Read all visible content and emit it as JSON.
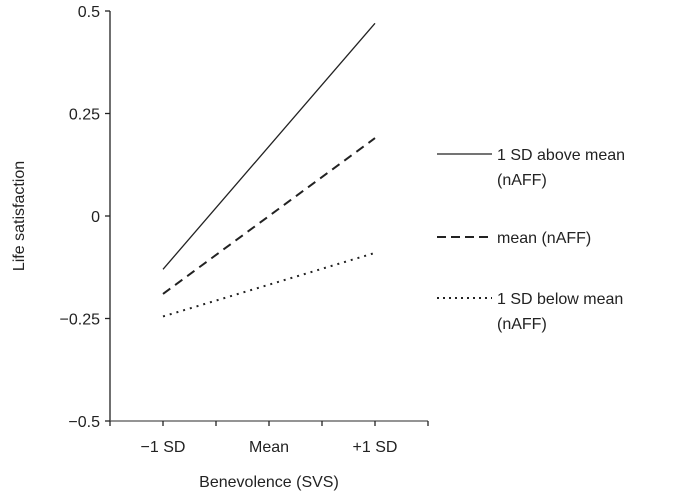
{
  "chart_data": {
    "type": "line",
    "title": "",
    "xlabel": "Benevolence (SVS)",
    "ylabel": "Life satisfaction",
    "categories": [
      "−1 SD",
      "Mean",
      "+1 SD"
    ],
    "x_positions": [
      1,
      3,
      5
    ],
    "xlim": [
      0,
      6
    ],
    "ylim": [
      -0.5,
      0.5
    ],
    "yticks": [
      0.5,
      0.25,
      0,
      -0.25,
      -0.5
    ],
    "ytick_labels": [
      "0.5",
      "0.25",
      "0",
      "−0.25",
      "−0.5"
    ],
    "grid": false,
    "legend_position": "right",
    "series": [
      {
        "name": "1 SD above mean (nAFF)",
        "label_lines": [
          "1 SD above mean",
          "(nAFF)"
        ],
        "style": "solid",
        "x": [
          1,
          5
        ],
        "values": [
          -0.13,
          0.47
        ]
      },
      {
        "name": "mean (nAFF)",
        "label_lines": [
          "mean (nAFF)"
        ],
        "style": "dashed",
        "x": [
          1,
          5
        ],
        "values": [
          -0.19,
          0.19
        ]
      },
      {
        "name": "1 SD below mean (nAFF)",
        "label_lines": [
          "1 SD below mean",
          "(nAFF)"
        ],
        "style": "dotted",
        "x": [
          1,
          5
        ],
        "values": [
          -0.245,
          -0.09
        ]
      }
    ],
    "colors": {
      "axis": "#222222",
      "line": "#222222"
    }
  }
}
